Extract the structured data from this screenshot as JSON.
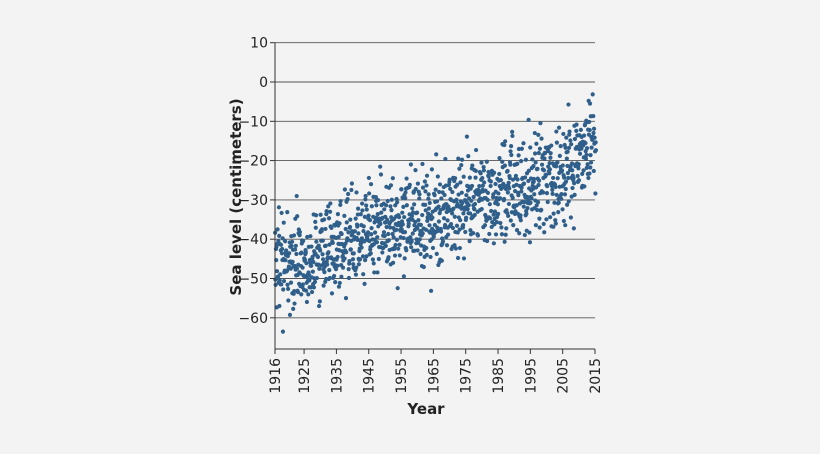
{
  "chart_data": {
    "type": "scatter",
    "title": "",
    "xlabel": "Year",
    "ylabel": "Sea level (centimeters)",
    "xlim": [
      1916,
      2015
    ],
    "ylim": [
      -68,
      10
    ],
    "x_ticks": [
      1916,
      1925,
      1935,
      1945,
      1955,
      1965,
      1975,
      1985,
      1995,
      2005,
      2015
    ],
    "x_tick_labels": [
      "1916",
      "1925",
      "1935",
      "1945",
      "1955",
      "1965",
      "1975",
      "1985",
      "1995",
      "2005",
      "2015"
    ],
    "y_ticks": [
      10,
      0,
      -10,
      -20,
      -30,
      -40,
      -50,
      -60
    ],
    "y_tick_labels": [
      "10",
      "0",
      "−10",
      "−20",
      "−30",
      "−40",
      "−50",
      "−60"
    ],
    "grid": "horizontal",
    "point_color": "#2f5f8a",
    "points_per_year": 12,
    "annual_mean_estimate": [
      {
        "x": 1916,
        "y": -45
      },
      {
        "x": 1925,
        "y": -46
      },
      {
        "x": 1935,
        "y": -42
      },
      {
        "x": 1945,
        "y": -37
      },
      {
        "x": 1955,
        "y": -36
      },
      {
        "x": 1965,
        "y": -35
      },
      {
        "x": 1975,
        "y": -30
      },
      {
        "x": 1985,
        "y": -28
      },
      {
        "x": 1995,
        "y": -26
      },
      {
        "x": 2005,
        "y": -22
      },
      {
        "x": 2015,
        "y": -15
      }
    ]
  }
}
